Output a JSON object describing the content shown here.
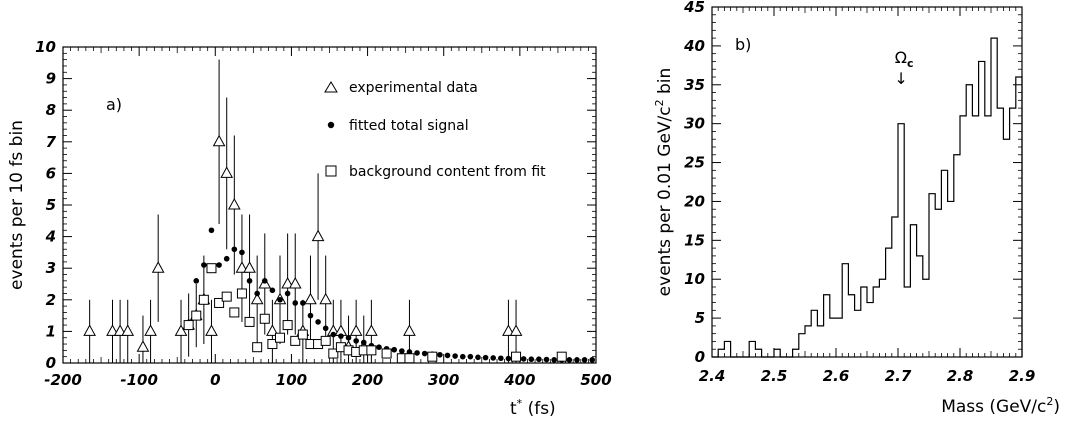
{
  "chart_data": [
    {
      "panel": "a)",
      "type": "scatter",
      "ylabel": "events per 10 fs bin",
      "xlabel": "t* (fs)",
      "xlabel_main": "t",
      "xlabel_sup": "*",
      "xlabel_unit": "(fs)",
      "xlim": [
        -200,
        500
      ],
      "ylim": [
        0,
        10
      ],
      "xticks": [
        -200,
        -100,
        0,
        100,
        200,
        300,
        400,
        500
      ],
      "yticks": [
        0,
        1,
        2,
        3,
        4,
        5,
        6,
        7,
        8,
        9,
        10
      ],
      "grid": false,
      "legend_position": "top-right",
      "legend": [
        {
          "marker": "triangle",
          "label": "experimental data"
        },
        {
          "marker": "dot",
          "label": "fitted total signal"
        },
        {
          "marker": "square",
          "label": "background content from fit"
        }
      ],
      "series": [
        {
          "name": "experimental data",
          "marker": "triangle",
          "points": [
            {
              "x": -165,
              "y": 1,
              "lo": 0,
              "hi": 2
            },
            {
              "x": -135,
              "y": 1,
              "lo": 0,
              "hi": 2
            },
            {
              "x": -125,
              "y": 1,
              "lo": 0,
              "hi": 2
            },
            {
              "x": -115,
              "y": 1,
              "lo": 0,
              "hi": 2
            },
            {
              "x": -95,
              "y": 0.5,
              "lo": 0,
              "hi": 1.5
            },
            {
              "x": -85,
              "y": 1,
              "lo": 0,
              "hi": 2
            },
            {
              "x": -75,
              "y": 3,
              "lo": 1.3,
              "hi": 4.7
            },
            {
              "x": -45,
              "y": 1,
              "lo": 0,
              "hi": 2
            },
            {
              "x": -35,
              "y": 1.2,
              "lo": 0.2,
              "hi": 2.2
            },
            {
              "x": -25,
              "y": 1.5,
              "lo": 0.5,
              "hi": 2.5
            },
            {
              "x": -15,
              "y": 2,
              "lo": 0.6,
              "hi": 3.4
            },
            {
              "x": -5,
              "y": 1,
              "lo": 0,
              "hi": 2
            },
            {
              "x": 5,
              "y": 7,
              "lo": 4.4,
              "hi": 9.6
            },
            {
              "x": 15,
              "y": 6,
              "lo": 3.6,
              "hi": 8.4
            },
            {
              "x": 25,
              "y": 5,
              "lo": 2.8,
              "hi": 7.2
            },
            {
              "x": 35,
              "y": 3,
              "lo": 1.3,
              "hi": 4.7
            },
            {
              "x": 45,
              "y": 3,
              "lo": 1.3,
              "hi": 4.7
            },
            {
              "x": 55,
              "y": 2,
              "lo": 0.6,
              "hi": 3.4
            },
            {
              "x": 65,
              "y": 2.5,
              "lo": 0.9,
              "hi": 4.1
            },
            {
              "x": 75,
              "y": 1,
              "lo": 0,
              "hi": 2
            },
            {
              "x": 85,
              "y": 2,
              "lo": 0.6,
              "hi": 3.4
            },
            {
              "x": 95,
              "y": 2.5,
              "lo": 0.9,
              "hi": 4.1
            },
            {
              "x": 105,
              "y": 2.5,
              "lo": 0.9,
              "hi": 4.1
            },
            {
              "x": 115,
              "y": 1,
              "lo": 0,
              "hi": 2
            },
            {
              "x": 125,
              "y": 2,
              "lo": 0.6,
              "hi": 3.4
            },
            {
              "x": 135,
              "y": 4,
              "lo": 2,
              "hi": 6
            },
            {
              "x": 145,
              "y": 2,
              "lo": 0.6,
              "hi": 3.4
            },
            {
              "x": 155,
              "y": 1,
              "lo": 0,
              "hi": 2
            },
            {
              "x": 165,
              "y": 1,
              "lo": 0,
              "hi": 2
            },
            {
              "x": 175,
              "y": 0.5,
              "lo": 0,
              "hi": 1.5
            },
            {
              "x": 185,
              "y": 1,
              "lo": 0,
              "hi": 2
            },
            {
              "x": 195,
              "y": 0.5,
              "lo": 0,
              "hi": 1.5
            },
            {
              "x": 205,
              "y": 1,
              "lo": 0,
              "hi": 2
            },
            {
              "x": 255,
              "y": 1,
              "lo": 0,
              "hi": 2
            },
            {
              "x": 385,
              "y": 1,
              "lo": 0,
              "hi": 2
            },
            {
              "x": 395,
              "y": 1,
              "lo": 0,
              "hi": 2
            }
          ]
        },
        {
          "name": "fitted total signal",
          "marker": "dot",
          "points": [
            {
              "x": -25,
              "y": 2.6
            },
            {
              "x": -15,
              "y": 3.1
            },
            {
              "x": -5,
              "y": 4.2
            },
            {
              "x": 5,
              "y": 3.1
            },
            {
              "x": 15,
              "y": 3.3
            },
            {
              "x": 25,
              "y": 3.6
            },
            {
              "x": 35,
              "y": 3.5
            },
            {
              "x": 45,
              "y": 2.6
            },
            {
              "x": 55,
              "y": 2.2
            },
            {
              "x": 65,
              "y": 2.6
            },
            {
              "x": 75,
              "y": 2.3
            },
            {
              "x": 85,
              "y": 2.0
            },
            {
              "x": 95,
              "y": 2.2
            },
            {
              "x": 105,
              "y": 1.9
            },
            {
              "x": 115,
              "y": 1.9
            },
            {
              "x": 125,
              "y": 1.5
            },
            {
              "x": 135,
              "y": 1.3
            },
            {
              "x": 145,
              "y": 1.1
            },
            {
              "x": 155,
              "y": 0.9
            },
            {
              "x": 165,
              "y": 0.85
            },
            {
              "x": 175,
              "y": 0.8
            },
            {
              "x": 185,
              "y": 0.7
            },
            {
              "x": 195,
              "y": 0.65
            },
            {
              "x": 205,
              "y": 0.55
            },
            {
              "x": 215,
              "y": 0.5
            },
            {
              "x": 225,
              "y": 0.45
            },
            {
              "x": 235,
              "y": 0.42
            },
            {
              "x": 245,
              "y": 0.38
            },
            {
              "x": 255,
              "y": 0.35
            },
            {
              "x": 265,
              "y": 0.32
            },
            {
              "x": 275,
              "y": 0.3
            },
            {
              "x": 285,
              "y": 0.28
            },
            {
              "x": 295,
              "y": 0.26
            },
            {
              "x": 305,
              "y": 0.24
            },
            {
              "x": 315,
              "y": 0.22
            },
            {
              "x": 325,
              "y": 0.2
            },
            {
              "x": 335,
              "y": 0.2
            },
            {
              "x": 345,
              "y": 0.18
            },
            {
              "x": 355,
              "y": 0.17
            },
            {
              "x": 365,
              "y": 0.16
            },
            {
              "x": 375,
              "y": 0.15
            },
            {
              "x": 385,
              "y": 0.14
            },
            {
              "x": 395,
              "y": 0.14
            },
            {
              "x": 405,
              "y": 0.13
            },
            {
              "x": 415,
              "y": 0.12
            },
            {
              "x": 425,
              "y": 0.12
            },
            {
              "x": 435,
              "y": 0.11
            },
            {
              "x": 445,
              "y": 0.1
            },
            {
              "x": 455,
              "y": 0.1
            },
            {
              "x": 465,
              "y": 0.1
            },
            {
              "x": 475,
              "y": 0.1
            },
            {
              "x": 485,
              "y": 0.1
            },
            {
              "x": 495,
              "y": 0.1
            }
          ]
        },
        {
          "name": "background content from fit",
          "marker": "square",
          "points": [
            {
              "x": -35,
              "y": 1.2
            },
            {
              "x": -25,
              "y": 1.5
            },
            {
              "x": -15,
              "y": 2.0
            },
            {
              "x": -5,
              "y": 3.0
            },
            {
              "x": 5,
              "y": 1.9
            },
            {
              "x": 15,
              "y": 2.1
            },
            {
              "x": 25,
              "y": 1.6
            },
            {
              "x": 35,
              "y": 2.2
            },
            {
              "x": 45,
              "y": 1.3
            },
            {
              "x": 55,
              "y": 0.5
            },
            {
              "x": 65,
              "y": 1.4
            },
            {
              "x": 75,
              "y": 0.6
            },
            {
              "x": 85,
              "y": 0.8
            },
            {
              "x": 95,
              "y": 1.2
            },
            {
              "x": 105,
              "y": 0.7
            },
            {
              "x": 115,
              "y": 0.9
            },
            {
              "x": 125,
              "y": 0.6
            },
            {
              "x": 135,
              "y": 0.6
            },
            {
              "x": 145,
              "y": 0.7
            },
            {
              "x": 155,
              "y": 0.3
            },
            {
              "x": 165,
              "y": 0.5
            },
            {
              "x": 175,
              "y": 0.4
            },
            {
              "x": 185,
              "y": 0.35
            },
            {
              "x": 195,
              "y": 0.4
            },
            {
              "x": 205,
              "y": 0.4
            },
            {
              "x": 225,
              "y": 0.3
            },
            {
              "x": 245,
              "y": 0.15
            },
            {
              "x": 255,
              "y": 0.15
            },
            {
              "x": 285,
              "y": 0.2
            },
            {
              "x": 395,
              "y": 0.2
            },
            {
              "x": 455,
              "y": 0.2
            }
          ]
        }
      ]
    },
    {
      "panel": "b)",
      "type": "histogram",
      "ylabel": "events per 0.01 GeV/c² bin",
      "ylabel_main": "events per 0.01 GeV/c",
      "ylabel_sup": "2",
      "ylabel_tail": " bin",
      "xlabel": "Mass (GeV/c²)",
      "xlabel_main": "Mass (GeV/c",
      "xlabel_sup": "2",
      "xlabel_tail": ")",
      "xlim": [
        2.4,
        2.9
      ],
      "ylim": [
        0,
        45
      ],
      "xticks": [
        "2.4",
        "2.5",
        "2.6",
        "2.7",
        "2.8",
        "2.9"
      ],
      "xtick_values": [
        2.4,
        2.5,
        2.6,
        2.7,
        2.8,
        2.9
      ],
      "yticks": [
        0,
        5,
        10,
        15,
        20,
        25,
        30,
        35,
        40,
        45
      ],
      "grid": false,
      "bin_start": 2.4,
      "bin_width": 0.01,
      "values": [
        0,
        1,
        2,
        0,
        0,
        0,
        2,
        1,
        0,
        0,
        1,
        0,
        0,
        1,
        3,
        4,
        6,
        4,
        8,
        5,
        5,
        12,
        8,
        6,
        9,
        7,
        9,
        10,
        14,
        18,
        30,
        9,
        17,
        13,
        10,
        21,
        19,
        24,
        20,
        26,
        31,
        35,
        31,
        38,
        31,
        41,
        32,
        28,
        32,
        36
      ],
      "annotation": {
        "symbol": "Ω",
        "subscript": "c",
        "arrow": "↓",
        "x": 2.705
      }
    }
  ]
}
